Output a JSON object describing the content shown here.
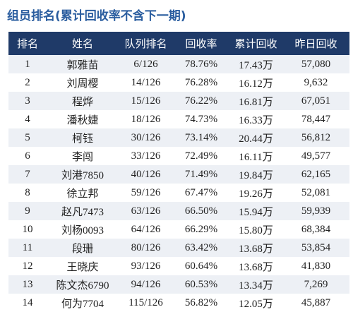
{
  "title": "组员排名(累计回收率不含下一期)",
  "table": {
    "header": [
      "排名",
      "姓名",
      "队列排名",
      "回收率",
      "累计回收",
      "昨日回收"
    ],
    "rows": [
      [
        "1",
        "郭雅苗",
        "6/126",
        "78.76%",
        "17.43万",
        "57,080"
      ],
      [
        "2",
        "刘周樱",
        "14/126",
        "76.28%",
        "16.12万",
        "9,632"
      ],
      [
        "3",
        "程烨",
        "15/126",
        "76.22%",
        "16.81万",
        "67,051"
      ],
      [
        "4",
        "潘秋婕",
        "18/126",
        "74.73%",
        "16.33万",
        "78,447"
      ],
      [
        "5",
        "柯钰",
        "30/126",
        "73.14%",
        "20.44万",
        "56,812"
      ],
      [
        "6",
        "李闯",
        "33/126",
        "72.49%",
        "16.11万",
        "49,577"
      ],
      [
        "7",
        "刘港7850",
        "40/126",
        "71.49%",
        "19.84万",
        "62,165"
      ],
      [
        "8",
        "徐立邦",
        "59/126",
        "67.47%",
        "19.26万",
        "52,081"
      ],
      [
        "9",
        "赵凡7473",
        "63/126",
        "66.50%",
        "15.94万",
        "59,939"
      ],
      [
        "10",
        "刘杨0093",
        "64/126",
        "66.29%",
        "15.80万",
        "68,384"
      ],
      [
        "11",
        "段珊",
        "80/126",
        "63.42%",
        "13.68万",
        "53,854"
      ],
      [
        "12",
        "王晓庆",
        "93/126",
        "60.64%",
        "13.68万",
        "41,830"
      ],
      [
        "13",
        "陈文杰6790",
        "94/126",
        "60.53%",
        "13.34万",
        "7,269"
      ],
      [
        "14",
        "何为7704",
        "115/126",
        "56.82%",
        "12.05万",
        "45,887"
      ]
    ]
  }
}
